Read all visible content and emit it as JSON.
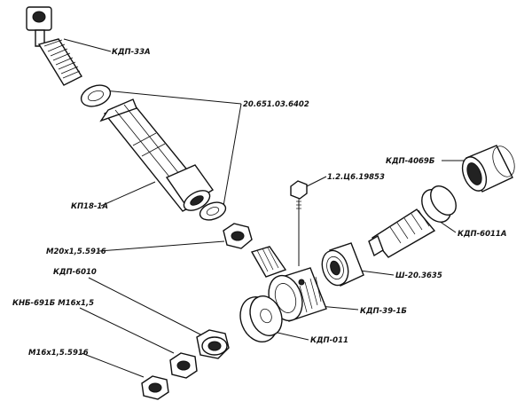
{
  "labels": {
    "kdp_33a": "КДП-33А",
    "washer_20651": "20.651.03.6402",
    "kp18_1a": "КП18-1А",
    "bolt_12c6": "1.2.Ц6.19853",
    "kdp_4069b": "КДП-4069Б",
    "kdp_6011a": "КДП-6011А",
    "m20": "М20х1,5.5916",
    "sh_20": "Ш-20.3635",
    "kdp_6010": "КДП-6010",
    "kdp_39": "КДП-39-1Б",
    "knb": "КНБ-691Б М16х1,5",
    "kdp_011": "КДП-011",
    "m16": "М16х1,5.5916"
  }
}
